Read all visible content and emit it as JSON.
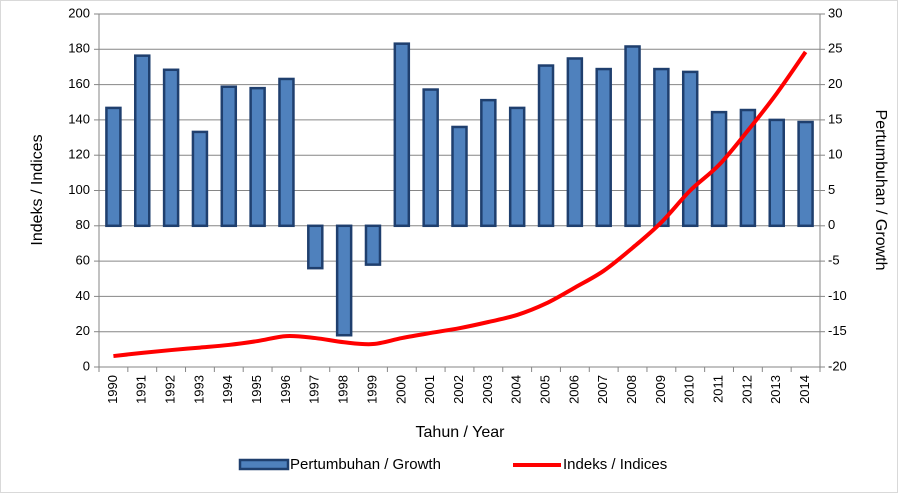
{
  "chart_data": {
    "type": "bar",
    "x_label": "Tahun / Year",
    "y_label": "Indeks / Indices",
    "y2_label": "Pertumbuhan / Growth",
    "categories": [
      "1990",
      "1991",
      "1992",
      "1993",
      "1994",
      "1995",
      "1996",
      "1997",
      "1998",
      "1999",
      "2000",
      "2001",
      "2002",
      "2003",
      "2004",
      "2005",
      "2006",
      "2007",
      "2008",
      "2009",
      "2010",
      "2011",
      "2012",
      "2013",
      "2014"
    ],
    "series": [
      {
        "name": "Pertumbuhan / Growth",
        "type": "bar",
        "axis": "y2",
        "color": "#4f81bd",
        "values": [
          16.7,
          24.1,
          22.1,
          13.3,
          19.7,
          19.5,
          20.8,
          -6.0,
          -15.5,
          -5.5,
          25.8,
          19.3,
          14.0,
          17.8,
          16.7,
          22.7,
          23.7,
          22.2,
          25.4,
          22.2,
          21.8,
          16.1,
          16.4,
          15.0,
          14.7
        ]
      },
      {
        "name": "Indeks / Indices",
        "type": "line",
        "axis": "y",
        "color": "#ff0000",
        "values": [
          6.2,
          8,
          9.6,
          11,
          12.5,
          14.7,
          17.5,
          16.4,
          14,
          13,
          16.4,
          19.3,
          22,
          25.5,
          29.5,
          36,
          45,
          54.5,
          67.5,
          82,
          100,
          114.5,
          134,
          155,
          178.5
        ]
      }
    ],
    "ylim": [
      0,
      200
    ],
    "yticks": [
      0,
      20,
      40,
      60,
      80,
      100,
      120,
      140,
      160,
      180,
      200
    ],
    "y2lim": [
      -20,
      30
    ],
    "y2ticks": [
      -20,
      -15,
      -10,
      -5,
      0,
      5,
      10,
      15,
      20,
      25,
      30
    ],
    "grid": true,
    "legend": "bottom"
  }
}
